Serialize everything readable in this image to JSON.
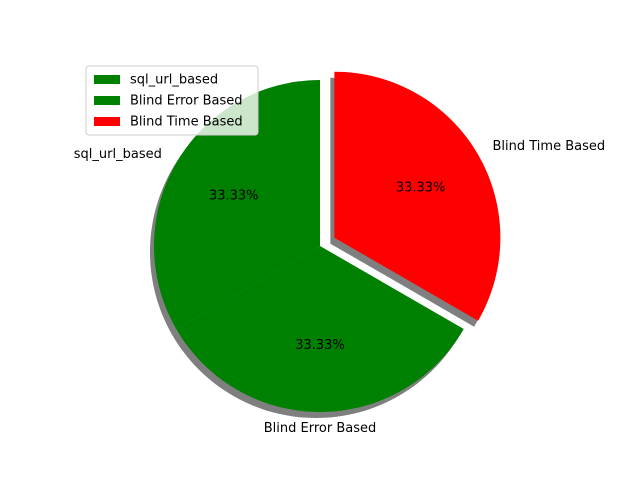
{
  "chart_data": {
    "type": "pie",
    "title": "",
    "slices": [
      {
        "label": "sql_url_based",
        "value": 1,
        "pct_label": "33.33%",
        "color": "#008000",
        "exploded": false
      },
      {
        "label": "Blind Error Based",
        "value": 1,
        "pct_label": "33.33%",
        "color": "#008000",
        "exploded": false
      },
      {
        "label": "Blind Time Based",
        "value": 1,
        "pct_label": "33.33%",
        "color": "#ff0000",
        "exploded": true
      }
    ],
    "legend": {
      "placement": "upper-left",
      "entries": [
        "sql_url_based",
        "Blind Error Based",
        "Blind Time Based"
      ]
    },
    "shadow": true,
    "start_angle_deg": 90,
    "direction": "counterclockwise"
  }
}
